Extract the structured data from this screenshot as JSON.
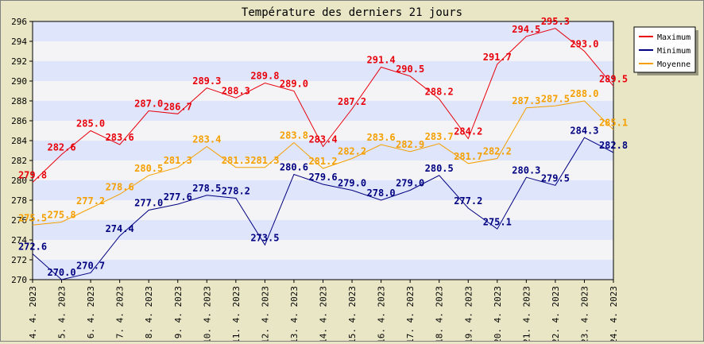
{
  "chart_data": {
    "type": "line",
    "title": "Température des derniers 21 jours",
    "xlabel": "",
    "ylabel": "",
    "ylim": [
      270,
      296
    ],
    "yticks": [
      270,
      272,
      274,
      276,
      278,
      280,
      282,
      284,
      286,
      288,
      290,
      292,
      294,
      296
    ],
    "grid": "horizontal bands",
    "legend_position": "top-right",
    "categories": [
      "4. 4. 2023",
      "5. 4. 2023",
      "6. 4. 2023",
      "7. 4. 2023",
      "8. 4. 2023",
      "9. 4. 2023",
      "10. 4. 2023",
      "11. 4. 2023",
      "12. 4. 2023",
      "13. 4. 2023",
      "14. 4. 2023",
      "15. 4. 2023",
      "16. 4. 2023",
      "17. 4. 2023",
      "18. 4. 2023",
      "19. 4. 2023",
      "20. 4. 2023",
      "21. 4. 2023",
      "22. 4. 2023",
      "23. 4. 2023",
      "24. 4. 2023"
    ],
    "series": [
      {
        "name": "Maximum",
        "color": "#e8000b",
        "values": [
          279.8,
          282.6,
          285.0,
          283.6,
          287.0,
          286.7,
          289.3,
          288.3,
          289.8,
          289.0,
          283.4,
          287.2,
          291.4,
          290.5,
          288.2,
          284.2,
          291.7,
          294.5,
          295.3,
          293.0,
          289.5
        ]
      },
      {
        "name": "Minimum",
        "color": "#000080",
        "values": [
          272.6,
          270.0,
          270.7,
          274.4,
          277.0,
          277.6,
          278.5,
          278.2,
          273.5,
          280.6,
          279.6,
          279.0,
          278.0,
          279.0,
          280.5,
          277.2,
          275.1,
          280.3,
          279.5,
          284.3,
          282.8
        ]
      },
      {
        "name": "Moyenne",
        "color": "#f5a000",
        "values": [
          275.5,
          275.8,
          277.2,
          278.6,
          280.5,
          281.3,
          283.4,
          281.3,
          281.3,
          283.8,
          281.2,
          282.2,
          283.6,
          282.9,
          283.7,
          281.7,
          282.2,
          287.3,
          287.5,
          288.0,
          285.1
        ]
      }
    ],
    "point_labels": [
      [
        "279.8",
        "282.6",
        "285.0",
        "283.6",
        "287.0",
        "286.7",
        "289.3",
        "288.3",
        "289.8",
        "289.0",
        "283.4",
        "287.2",
        "291.4",
        "290.5",
        "288.2",
        "284.2",
        "291.7",
        "294.5",
        "295.3",
        "293.0",
        "289.5"
      ],
      [
        "272.6",
        "270.0",
        "270.7",
        "274.4",
        "277.0",
        "277.6",
        "278.5",
        "278.2",
        "273.5",
        "280.6",
        "279.6",
        "279.0",
        "278.0",
        "279.0",
        "280.5",
        "277.2",
        "275.1",
        "280.3",
        "279.5",
        "284.3",
        "282.8"
      ],
      [
        "275.5",
        "275.8",
        "277.2",
        "278.6",
        "280.5",
        "281.3",
        "283.4",
        "281.3",
        "281.3",
        "283.8",
        "281.2",
        "282.2",
        "283.6",
        "282.9",
        "283.7",
        "281.7",
        "282.2",
        "287.3",
        "287.5",
        "288.0",
        "285.1"
      ]
    ]
  }
}
